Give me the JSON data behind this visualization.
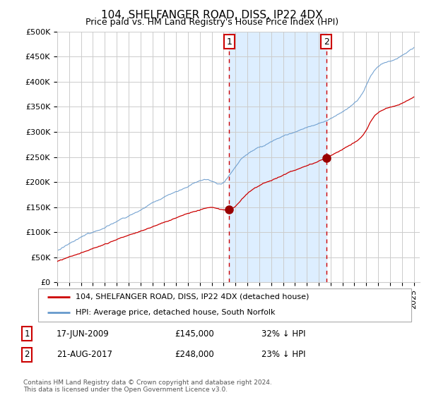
{
  "title": "104, SHELFANGER ROAD, DISS, IP22 4DX",
  "subtitle": "Price paid vs. HM Land Registry's House Price Index (HPI)",
  "ylabel_ticks": [
    "£0",
    "£50K",
    "£100K",
    "£150K",
    "£200K",
    "£250K",
    "£300K",
    "£350K",
    "£400K",
    "£450K",
    "£500K"
  ],
  "ytick_vals": [
    0,
    50000,
    100000,
    150000,
    200000,
    250000,
    300000,
    350000,
    400000,
    450000,
    500000
  ],
  "ylim": [
    0,
    500000
  ],
  "xlim_start": 1995.0,
  "xlim_end": 2025.5,
  "transaction1_date": 2009.46,
  "transaction1_price": 145000,
  "transaction1_label": "1",
  "transaction2_date": 2017.64,
  "transaction2_price": 248000,
  "transaction2_label": "2",
  "legend_line1": "104, SHELFANGER ROAD, DISS, IP22 4DX (detached house)",
  "legend_line2": "HPI: Average price, detached house, South Norfolk",
  "footnote": "Contains HM Land Registry data © Crown copyright and database right 2024.\nThis data is licensed under the Open Government Licence v3.0.",
  "line_color_red": "#cc0000",
  "line_color_blue": "#6699cc",
  "shading_color": "#ddeeff",
  "marker_color_red": "#990000",
  "dashed_color": "#cc0000",
  "background_color": "#ffffff",
  "grid_color": "#cccccc",
  "title_fontsize": 11,
  "subtitle_fontsize": 9,
  "tick_fontsize": 8
}
